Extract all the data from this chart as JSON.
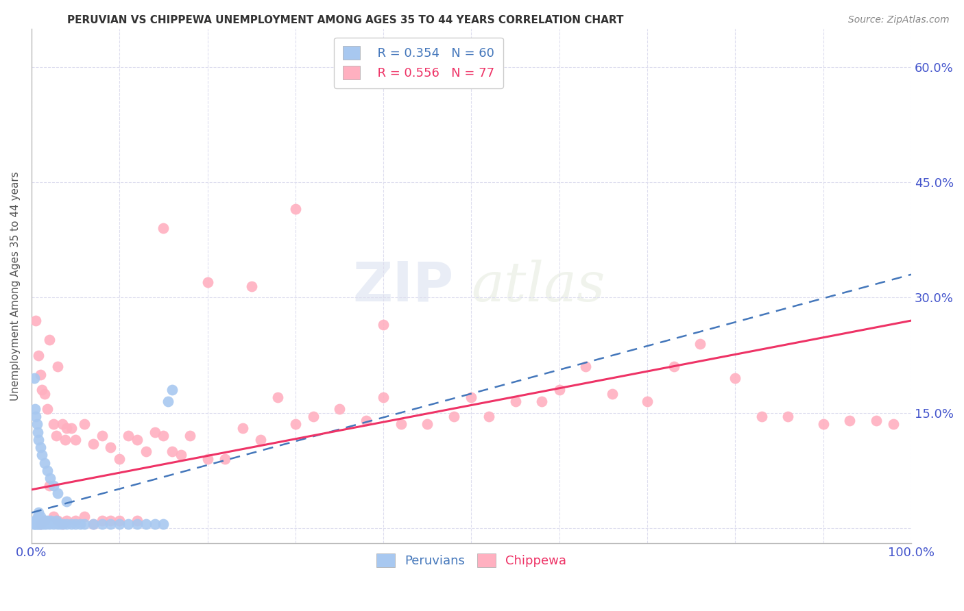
{
  "title": "PERUVIAN VS CHIPPEWA UNEMPLOYMENT AMONG AGES 35 TO 44 YEARS CORRELATION CHART",
  "source": "Source: ZipAtlas.com",
  "ylabel": "Unemployment Among Ages 35 to 44 years",
  "xlim": [
    0.0,
    1.0
  ],
  "ylim": [
    -0.02,
    0.65
  ],
  "x_ticks": [
    0.0,
    0.1,
    0.2,
    0.3,
    0.4,
    0.5,
    0.6,
    0.7,
    0.8,
    0.9,
    1.0
  ],
  "x_tick_labels": [
    "0.0%",
    "",
    "",
    "",
    "",
    "",
    "",
    "",
    "",
    "",
    "100.0%"
  ],
  "y_ticks": [
    0.0,
    0.15,
    0.3,
    0.45,
    0.6
  ],
  "y_tick_labels": [
    "",
    "15.0%",
    "30.0%",
    "45.0%",
    "60.0%"
  ],
  "peruvian_color": "#A8C8F0",
  "chippewa_color": "#FFB0C0",
  "peruvian_line_color": "#4477BB",
  "chippewa_line_color": "#EE3366",
  "legend_R_peruvian": "R = 0.354",
  "legend_N_peruvian": "N = 60",
  "legend_R_chippewa": "R = 0.556",
  "legend_N_chippewa": "N = 77",
  "watermark_zip": "ZIP",
  "watermark_atlas": "atlas",
  "grid_color": "#DDDDEE",
  "background_color": "#FFFFFF",
  "peruvian_x": [
    0.002,
    0.003,
    0.004,
    0.004,
    0.005,
    0.005,
    0.006,
    0.006,
    0.007,
    0.007,
    0.008,
    0.008,
    0.009,
    0.009,
    0.01,
    0.01,
    0.011,
    0.012,
    0.013,
    0.014,
    0.015,
    0.016,
    0.018,
    0.02,
    0.022,
    0.025,
    0.028,
    0.03,
    0.033,
    0.036,
    0.04,
    0.045,
    0.05,
    0.055,
    0.06,
    0.07,
    0.08,
    0.09,
    0.1,
    0.11,
    0.12,
    0.13,
    0.14,
    0.15,
    0.155,
    0.16,
    0.003,
    0.004,
    0.005,
    0.006,
    0.007,
    0.008,
    0.01,
    0.012,
    0.015,
    0.018,
    0.021,
    0.025,
    0.03,
    0.04
  ],
  "peruvian_y": [
    0.005,
    0.005,
    0.005,
    0.01,
    0.005,
    0.01,
    0.005,
    0.01,
    0.005,
    0.015,
    0.005,
    0.02,
    0.005,
    0.01,
    0.005,
    0.015,
    0.01,
    0.005,
    0.01,
    0.005,
    0.01,
    0.005,
    0.01,
    0.005,
    0.01,
    0.005,
    0.01,
    0.005,
    0.005,
    0.005,
    0.005,
    0.005,
    0.005,
    0.005,
    0.005,
    0.005,
    0.005,
    0.005,
    0.005,
    0.005,
    0.005,
    0.005,
    0.005,
    0.005,
    0.165,
    0.18,
    0.195,
    0.155,
    0.145,
    0.135,
    0.125,
    0.115,
    0.105,
    0.095,
    0.085,
    0.075,
    0.065,
    0.055,
    0.045,
    0.035
  ],
  "chippewa_x": [
    0.005,
    0.008,
    0.01,
    0.012,
    0.015,
    0.018,
    0.02,
    0.025,
    0.028,
    0.03,
    0.035,
    0.038,
    0.04,
    0.045,
    0.05,
    0.06,
    0.07,
    0.08,
    0.09,
    0.1,
    0.11,
    0.12,
    0.13,
    0.14,
    0.15,
    0.16,
    0.17,
    0.18,
    0.2,
    0.22,
    0.24,
    0.26,
    0.28,
    0.3,
    0.32,
    0.35,
    0.38,
    0.4,
    0.42,
    0.45,
    0.48,
    0.5,
    0.52,
    0.55,
    0.58,
    0.6,
    0.63,
    0.66,
    0.7,
    0.73,
    0.76,
    0.8,
    0.83,
    0.86,
    0.9,
    0.93,
    0.96,
    0.98,
    0.01,
    0.015,
    0.02,
    0.025,
    0.03,
    0.035,
    0.04,
    0.05,
    0.06,
    0.07,
    0.08,
    0.09,
    0.1,
    0.12,
    0.15,
    0.2,
    0.25,
    0.3,
    0.4
  ],
  "chippewa_y": [
    0.27,
    0.225,
    0.2,
    0.18,
    0.175,
    0.155,
    0.245,
    0.135,
    0.12,
    0.21,
    0.135,
    0.115,
    0.13,
    0.13,
    0.115,
    0.135,
    0.11,
    0.12,
    0.105,
    0.09,
    0.12,
    0.115,
    0.1,
    0.125,
    0.12,
    0.1,
    0.095,
    0.12,
    0.09,
    0.09,
    0.13,
    0.115,
    0.17,
    0.135,
    0.145,
    0.155,
    0.14,
    0.17,
    0.135,
    0.135,
    0.145,
    0.17,
    0.145,
    0.165,
    0.165,
    0.18,
    0.21,
    0.175,
    0.165,
    0.21,
    0.24,
    0.195,
    0.145,
    0.145,
    0.135,
    0.14,
    0.14,
    0.135,
    0.005,
    0.01,
    0.055,
    0.015,
    0.01,
    0.005,
    0.01,
    0.01,
    0.015,
    0.005,
    0.01,
    0.01,
    0.01,
    0.01,
    0.39,
    0.32,
    0.315,
    0.415,
    0.265
  ]
}
